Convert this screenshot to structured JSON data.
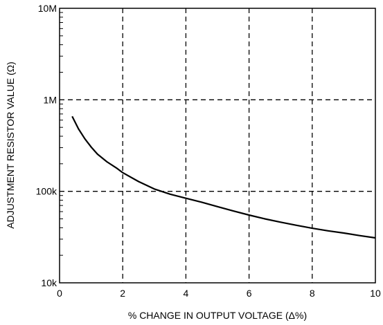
{
  "chart_data": {
    "type": "line",
    "xlabel": "% CHANGE IN OUTPUT VOLTAGE (Δ%)",
    "ylabel": "ADJUSTMENT RESISTOR VALUE (Ω)",
    "xlim": [
      0,
      10
    ],
    "ylim": [
      10000,
      10000000
    ],
    "yscale": "log",
    "grid": "dashed",
    "x_ticks": [
      0,
      2,
      4,
      6,
      8,
      10
    ],
    "x_tick_labels": [
      "0",
      "2",
      "4",
      "6",
      "8",
      "10"
    ],
    "y_ticks": [
      10000,
      100000,
      1000000,
      10000000
    ],
    "y_tick_labels": [
      "10k",
      "100k",
      "1M",
      "10M"
    ],
    "series": [
      {
        "color": "#000000",
        "x": [
          0.4,
          0.6,
          0.8,
          1.0,
          1.2,
          1.5,
          1.8,
          2.0,
          2.5,
          3.0,
          3.5,
          4.0,
          4.5,
          5.0,
          5.5,
          6.0,
          6.5,
          7.0,
          7.5,
          8.0,
          8.5,
          9.0,
          9.5,
          10.0
        ],
        "y": [
          660000,
          480000,
          375000,
          305000,
          255000,
          210000,
          180000,
          160000,
          128000,
          106000,
          93000,
          84000,
          76000,
          68000,
          61000,
          55000,
          50000,
          46000,
          42500,
          39500,
          37000,
          35000,
          32800,
          31000
        ]
      }
    ]
  }
}
